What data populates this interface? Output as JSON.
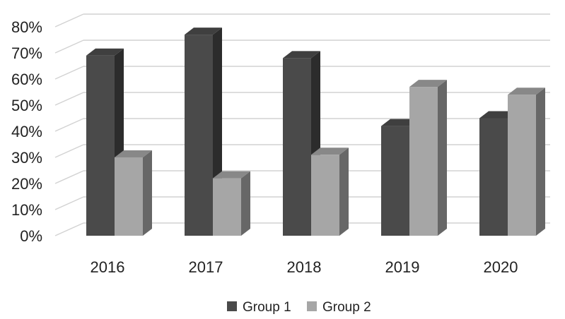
{
  "chart_data": {
    "type": "bar",
    "style": "3d-clustered-column",
    "categories": [
      "2016",
      "2017",
      "2018",
      "2019",
      "2020"
    ],
    "series": [
      {
        "name": "Group 1",
        "values": [
          0.69,
          0.77,
          0.68,
          0.42,
          0.45
        ],
        "color": "#4a4a4a"
      },
      {
        "name": "Group 2",
        "values": [
          0.3,
          0.22,
          0.31,
          0.57,
          0.54
        ],
        "color": "#a6a6a6"
      }
    ],
    "yticks": [
      "0%",
      "10%",
      "20%",
      "30%",
      "40%",
      "50%",
      "60%",
      "70%",
      "80%"
    ],
    "ylim": [
      0,
      0.8
    ],
    "grid": true,
    "legend": "bottom"
  }
}
